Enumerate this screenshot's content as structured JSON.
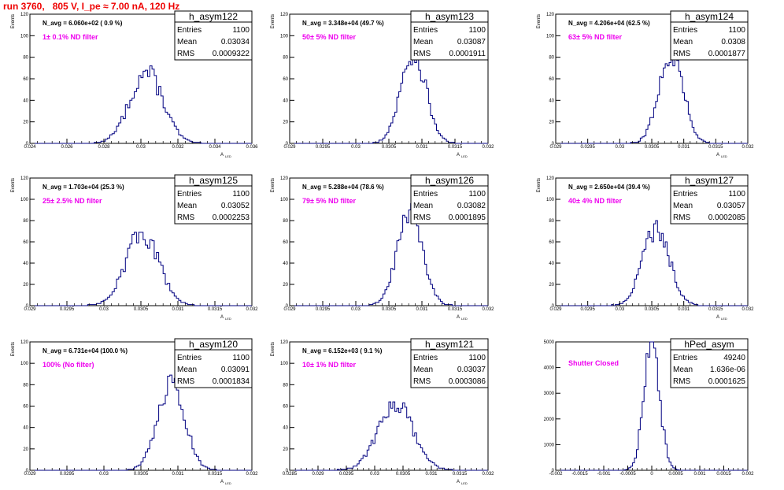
{
  "page": {
    "title": "run 3760,   805 V, I_pe ≈ 7.00 nA, 120 Hz",
    "colors": {
      "title": "#ee0000",
      "annotation": "#ee00ee",
      "histogram": "#000080",
      "frame": "#000000"
    }
  },
  "chart_data": [
    {
      "type": "histogram",
      "name": "h_asym122",
      "stats": {
        "entries": "1100",
        "mean": "0.03034",
        "rms": "0.0009322"
      },
      "annotation_title": "N_avg = 6.060e+02 ( 0.9 %)",
      "annotation_label": "1± 0.1% ND filter",
      "xlabel": "A_LED",
      "ylabel": "Events",
      "xlim": [
        0.024,
        0.036
      ],
      "ylim": [
        0,
        120
      ],
      "x_ticks": [
        "0.024",
        "0.026",
        "0.028",
        "0.03",
        "0.032",
        "0.034",
        "0.036"
      ],
      "y_ticks": [
        "0",
        "20",
        "40",
        "60",
        "80",
        "100",
        "120"
      ],
      "peak": {
        "mean": 0.0303,
        "sigma": 0.0009,
        "height": 66
      }
    },
    {
      "type": "histogram",
      "name": "h_asym123",
      "stats": {
        "entries": "1100",
        "mean": "0.03087",
        "rms": "0.0001911"
      },
      "annotation_title": "N_avg = 3.348e+04 (49.7 %)",
      "annotation_label": "50± 5% ND filter",
      "xlabel": "A_LED",
      "ylabel": "Events",
      "xlim": [
        0.029,
        0.032
      ],
      "ylim": [
        0,
        120
      ],
      "x_ticks": [
        "0.029",
        "0.0295",
        "0.03",
        "0.0305",
        "0.031",
        "0.0315",
        "0.032"
      ],
      "y_ticks": [
        "0",
        "20",
        "40",
        "60",
        "80",
        "100",
        "120"
      ],
      "peak": {
        "mean": 0.03087,
        "sigma": 0.00019,
        "height": 84
      }
    },
    {
      "type": "histogram",
      "name": "h_asym124",
      "stats": {
        "entries": "1100",
        "mean": "0.0308",
        "rms": "0.0001877"
      },
      "annotation_title": "N_avg = 4.206e+04 (62.5 %)",
      "annotation_label": "63± 5% ND filter",
      "xlabel": "A_LED",
      "ylabel": "Events",
      "xlim": [
        0.029,
        0.032
      ],
      "ylim": [
        0,
        120
      ],
      "x_ticks": [
        "0.029",
        "0.0295",
        "0.03",
        "0.0305",
        "0.031",
        "0.0315",
        "0.032"
      ],
      "y_ticks": [
        "0",
        "20",
        "40",
        "60",
        "80",
        "100",
        "120"
      ],
      "peak": {
        "mean": 0.0308,
        "sigma": 0.000188,
        "height": 86
      }
    },
    {
      "type": "histogram",
      "name": "h_asym125",
      "stats": {
        "entries": "1100",
        "mean": "0.03052",
        "rms": "0.0002253"
      },
      "annotation_title": "N_avg = 1.703e+04 (25.3 %)",
      "annotation_label": "25± 2.5% ND filter",
      "xlabel": "A_LED",
      "ylabel": "Events",
      "xlim": [
        0.029,
        0.032
      ],
      "ylim": [
        0,
        120
      ],
      "x_ticks": [
        "0.029",
        "0.0295",
        "0.03",
        "0.0305",
        "0.031",
        "0.0315",
        "0.032"
      ],
      "y_ticks": [
        "0",
        "20",
        "40",
        "60",
        "80",
        "100",
        "120"
      ],
      "peak": {
        "mean": 0.03052,
        "sigma": 0.000225,
        "height": 68
      }
    },
    {
      "type": "histogram",
      "name": "h_asym126",
      "stats": {
        "entries": "1100",
        "mean": "0.03082",
        "rms": "0.0001895"
      },
      "annotation_title": "N_avg = 5.288e+04 (78.6 %)",
      "annotation_label": "79± 5% ND filter",
      "xlabel": "A_LED",
      "ylabel": "Events",
      "xlim": [
        0.029,
        0.032
      ],
      "ylim": [
        0,
        120
      ],
      "x_ticks": [
        "0.029",
        "0.0295",
        "0.03",
        "0.0305",
        "0.031",
        "0.0315",
        "0.032"
      ],
      "y_ticks": [
        "0",
        "20",
        "40",
        "60",
        "80",
        "100",
        "120"
      ],
      "peak": {
        "mean": 0.03082,
        "sigma": 0.00019,
        "height": 87
      }
    },
    {
      "type": "histogram",
      "name": "h_asym127",
      "stats": {
        "entries": "1100",
        "mean": "0.03057",
        "rms": "0.0002085"
      },
      "annotation_title": "N_avg = 2.650e+04 (39.4 %)",
      "annotation_label": "40± 4% ND filter",
      "xlabel": "A_LED",
      "ylabel": "Events",
      "xlim": [
        0.029,
        0.032
      ],
      "ylim": [
        0,
        120
      ],
      "x_ticks": [
        "0.029",
        "0.0295",
        "0.03",
        "0.0305",
        "0.031",
        "0.0315",
        "0.032"
      ],
      "y_ticks": [
        "0",
        "20",
        "40",
        "60",
        "80",
        "100",
        "120"
      ],
      "peak": {
        "mean": 0.03057,
        "sigma": 0.000208,
        "height": 73
      }
    },
    {
      "type": "histogram",
      "name": "h_asym120",
      "stats": {
        "entries": "1100",
        "mean": "0.03091",
        "rms": "0.0001834"
      },
      "annotation_title": "N_avg = 6.731e+04 (100.0 %)",
      "annotation_label": "100% (No filter)",
      "xlabel": "A_LED",
      "ylabel": "Events",
      "xlim": [
        0.029,
        0.032
      ],
      "ylim": [
        0,
        120
      ],
      "x_ticks": [
        "0.029",
        "0.0295",
        "0.03",
        "0.0305",
        "0.031",
        "0.0315",
        "0.032"
      ],
      "y_ticks": [
        "0",
        "20",
        "40",
        "60",
        "80",
        "100",
        "120"
      ],
      "peak": {
        "mean": 0.03091,
        "sigma": 0.000183,
        "height": 80
      }
    },
    {
      "type": "histogram",
      "name": "h_asym121",
      "stats": {
        "entries": "1100",
        "mean": "0.03037",
        "rms": "0.0003086"
      },
      "annotation_title": "N_avg = 6.152e+03 ( 9.1 %)",
      "annotation_label": "10± 1% ND filter",
      "xlabel": "A_LED",
      "ylabel": "Events",
      "xlim": [
        0.0285,
        0.032
      ],
      "ylim": [
        0,
        120
      ],
      "x_ticks": [
        "0.0285",
        "0.029",
        "0.0295",
        "0.03",
        "0.0305",
        "0.031",
        "0.0315",
        "0.032"
      ],
      "y_ticks": [
        "0",
        "20",
        "40",
        "60",
        "80",
        "100",
        "120"
      ],
      "peak": {
        "mean": 0.03037,
        "sigma": 0.00031,
        "height": 62
      }
    },
    {
      "type": "histogram",
      "name": "hPed_asym",
      "stats": {
        "entries": "49240",
        "mean": "1.636e-06",
        "rms": "0.0001625"
      },
      "annotation_title": "",
      "annotation_label": "Shutter Closed",
      "xlabel": "",
      "ylabel": "",
      "xlim": [
        -0.002,
        0.002
      ],
      "ylim": [
        0,
        5000
      ],
      "x_ticks": [
        "-0.002",
        "-0.0015",
        "-0.001",
        "-0.0005",
        "0",
        "0.0005",
        "0.001",
        "0.0015",
        "0.002"
      ],
      "y_ticks": [
        "0",
        "1000",
        "2000",
        "3000",
        "4000",
        "5000"
      ],
      "peak": {
        "mean": 0.0,
        "sigma": 0.0001625,
        "height": 5000
      }
    }
  ]
}
